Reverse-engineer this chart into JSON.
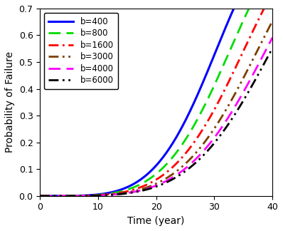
{
  "title": "",
  "xlabel": "Time (year)",
  "ylabel": "Probability of Failure",
  "xlim": [
    0,
    40
  ],
  "ylim": [
    0,
    0.7
  ],
  "xticks": [
    0,
    10,
    20,
    30,
    40
  ],
  "yticks": [
    0.0,
    0.1,
    0.2,
    0.3,
    0.4,
    0.5,
    0.6,
    0.7
  ],
  "series": [
    {
      "label": "b=400",
      "color": "blue",
      "linestyle": "-",
      "linewidth": 2.2,
      "scale": 32.0,
      "shape": 4.5
    },
    {
      "label": "b=800",
      "color": "#00dd00",
      "linestyle": "--",
      "linewidth": 2.0,
      "scale": 34.5,
      "shape": 4.5
    },
    {
      "label": "b=1600",
      "color": "red",
      "linestyle": "-.",
      "linewidth": 2.0,
      "scale": 37.0,
      "shape": 4.5
    },
    {
      "label": "b=3000",
      "color": "#7B3F00",
      "linestyle": "--",
      "linewidth": 2.0,
      "scale": 39.5,
      "shape": 4.5
    },
    {
      "label": "b=4000",
      "color": "magenta",
      "linestyle": "--",
      "linewidth": 2.0,
      "scale": 41.0,
      "shape": 4.5
    },
    {
      "label": "b=6000",
      "color": "black",
      "linestyle": "-.",
      "linewidth": 2.0,
      "scale": 42.0,
      "shape": 4.5
    }
  ],
  "figsize": [
    3.98,
    3.24
  ],
  "dpi": 100,
  "legend_fontsize": 8.5,
  "axis_fontsize": 10,
  "tick_fontsize": 9,
  "background_color": "#ffffff"
}
